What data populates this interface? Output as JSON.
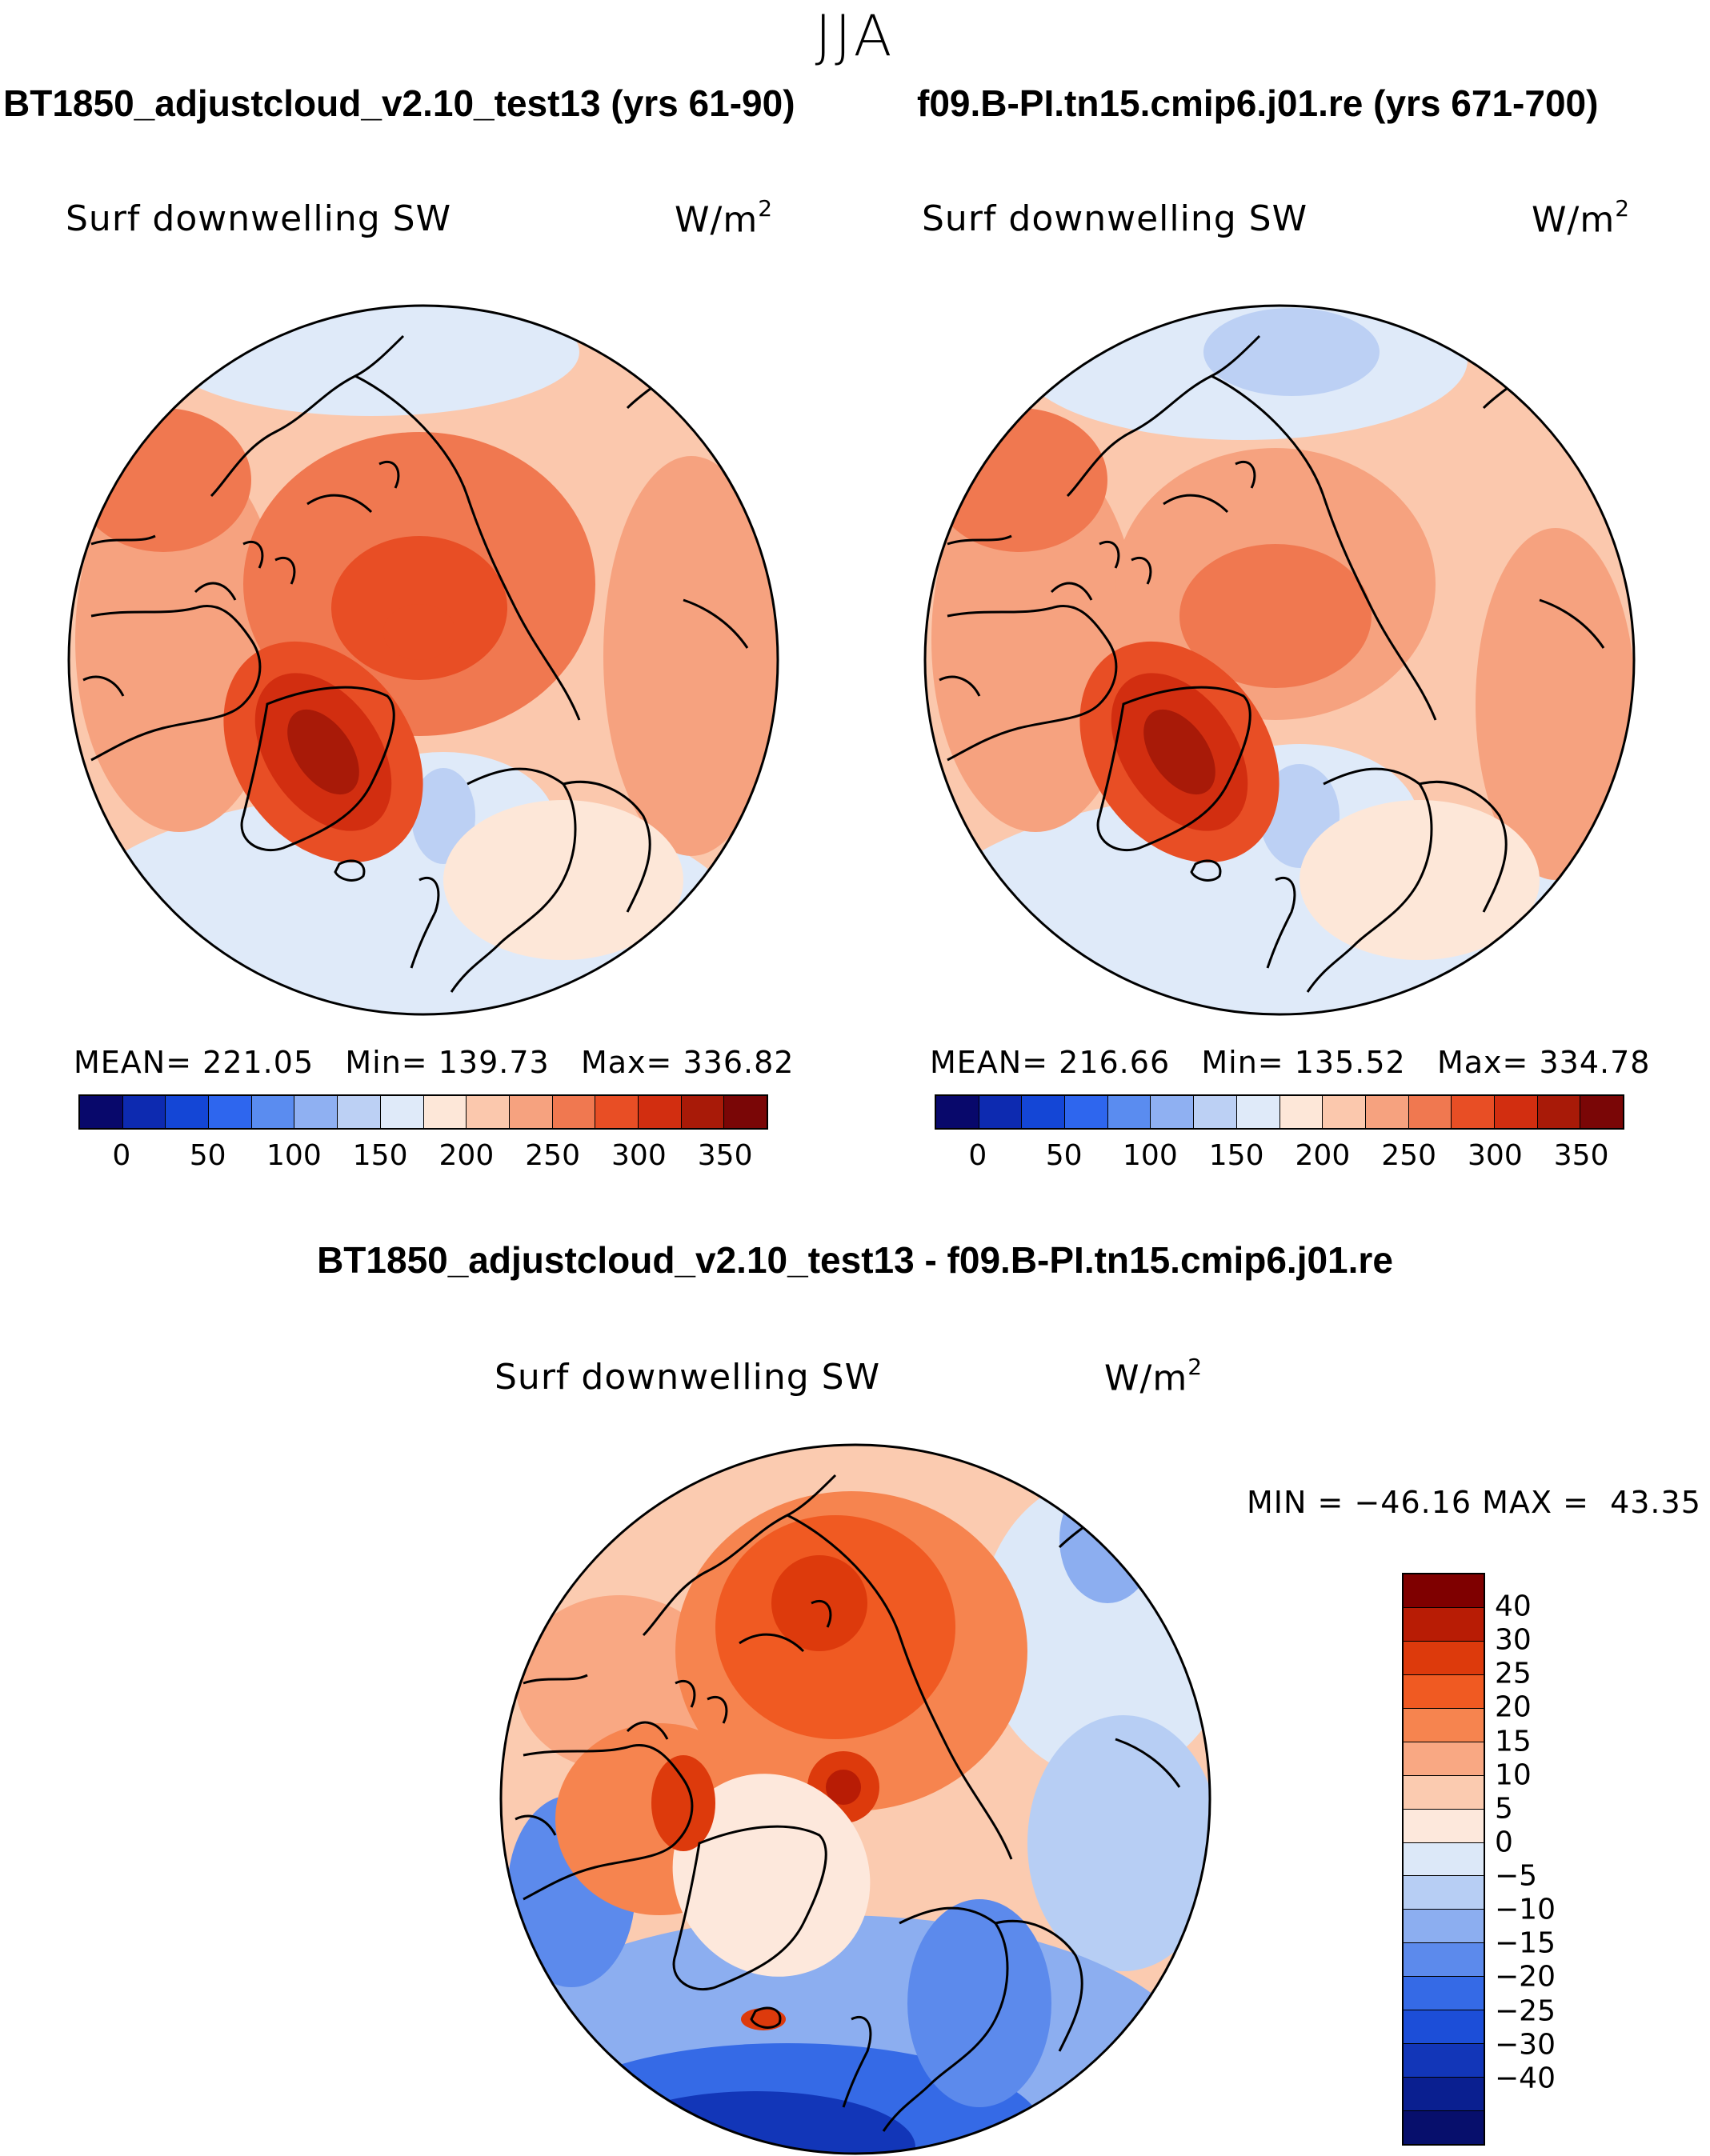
{
  "season": "JJA",
  "panels": [
    {
      "case_title": "BT1850_adjustcloud_v2.10_test13 (yrs 61-90)",
      "variable": "Surf downwelling SW",
      "units_base": "W/m",
      "units_exp": "2",
      "mean_label": "MEAN=",
      "mean": "221.05",
      "min_label": "Min=",
      "min": "139.73",
      "max_label": "Max=",
      "max": "336.82"
    },
    {
      "case_title": "f09.B-PI.tn15.cmip6.j01.re (yrs 671-700)",
      "variable": "Surf downwelling SW",
      "units_base": "W/m",
      "units_exp": "2",
      "mean_label": "MEAN=",
      "mean": "216.66",
      "min_label": "Min=",
      "min": "135.52",
      "max_label": "Max=",
      "max": "334.78"
    }
  ],
  "colorbar_top": {
    "colors": [
      "#08086b",
      "#0d2ab0",
      "#1446d6",
      "#2e66ee",
      "#5a8cf0",
      "#8fb0f2",
      "#bcd0f4",
      "#dfeaf9",
      "#fde7d8",
      "#fbc8ad",
      "#f6a27f",
      "#f07850",
      "#e84e25",
      "#d22e10",
      "#a81a08",
      "#7a0606"
    ],
    "tick_labels": [
      "0",
      "50",
      "100",
      "150",
      "200",
      "250",
      "300",
      "350"
    ]
  },
  "diff_title": "BT1850_adjustcloud_v2.10_test13 - f09.B-PI.tn15.cmip6.j01.re",
  "diff_panel": {
    "variable": "Surf downwelling SW",
    "units_base": "W/m",
    "units_exp": "2",
    "min_label": "MIN =",
    "min": "−46.16",
    "max_label": "MAX =",
    "max": "43.35"
  },
  "colorbar_diff": {
    "colors": [
      "#7f0000",
      "#b81c05",
      "#dd3a0c",
      "#f05a22",
      "#f6844f",
      "#f9a883",
      "#fbcbb0",
      "#fde8dc",
      "#dce8f8",
      "#b7cef4",
      "#8caef0",
      "#5c8aec",
      "#356ae6",
      "#1c4ed8",
      "#1236b8",
      "#0a1f90",
      "#070f6c"
    ],
    "tick_labels": [
      "40",
      "30",
      "25",
      "20",
      "15",
      "10",
      "5",
      "0",
      "−5",
      "−10",
      "−15",
      "−20",
      "−25",
      "−30",
      "−40"
    ]
  }
}
